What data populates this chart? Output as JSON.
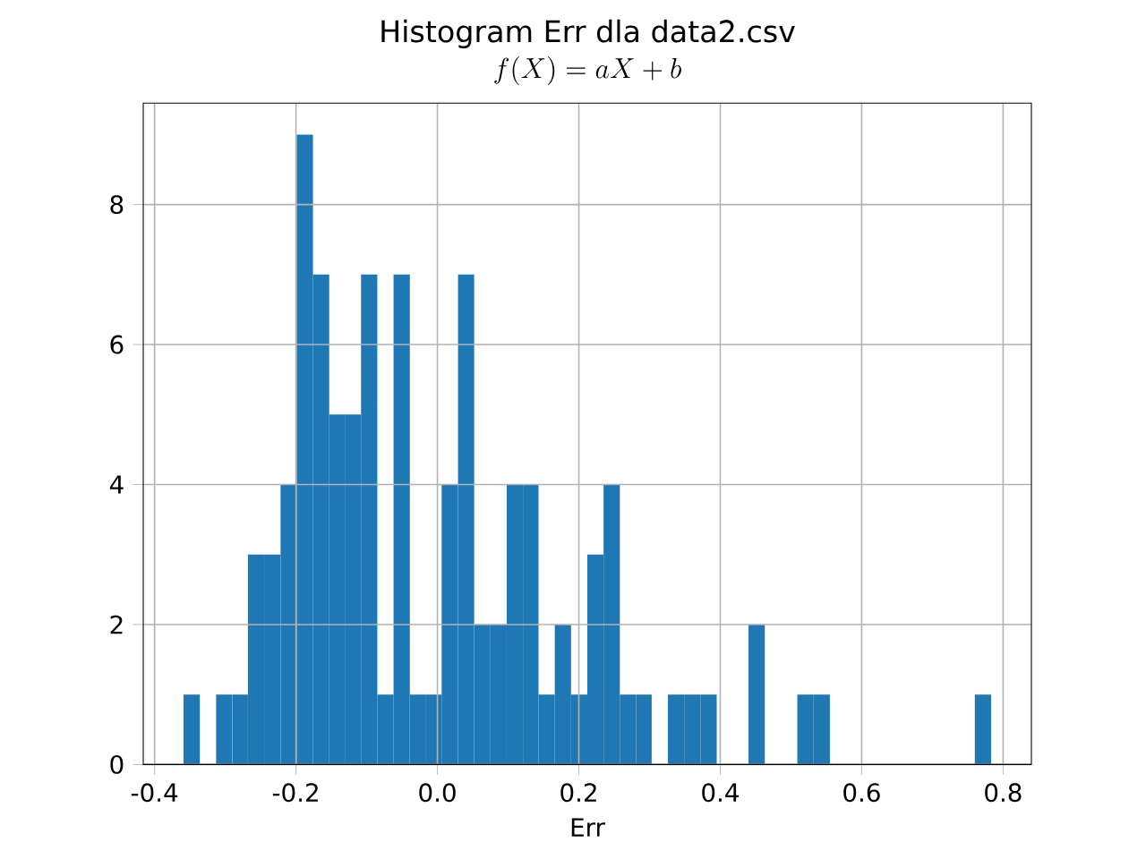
{
  "chart_data": {
    "type": "histogram",
    "title": "Histogram Err dla data2.csv",
    "subtitle": "f(X) = aX + b",
    "xlabel": "Err",
    "bins": [
      -0.359,
      -0.336,
      -0.313,
      -0.29,
      -0.268,
      -0.245,
      -0.222,
      -0.199,
      -0.176,
      -0.153,
      -0.131,
      -0.108,
      -0.085,
      -0.062,
      -0.039,
      -0.016,
      0.006,
      0.029,
      0.052,
      0.075,
      0.098,
      0.121,
      0.143,
      0.166,
      0.189,
      0.212,
      0.235,
      0.258,
      0.281,
      0.303,
      0.326,
      0.349,
      0.372,
      0.395,
      0.44,
      0.463,
      0.509,
      0.532,
      0.555,
      0.76,
      0.783
    ],
    "values": [
      1,
      0,
      1,
      1,
      3,
      3,
      4,
      9,
      7,
      5,
      5,
      7,
      1,
      7,
      1,
      1,
      4,
      7,
      2,
      2,
      4,
      4,
      1,
      2,
      1,
      3,
      4,
      1,
      1,
      0,
      1,
      1,
      1,
      0,
      2,
      0,
      1,
      1,
      0,
      1
    ],
    "color": "#1f77b4",
    "xlim": [
      -0.416,
      0.84
    ],
    "ylim": [
      0,
      9.45
    ],
    "xticks": [
      -0.4,
      -0.2,
      {
        "value": 0,
        "label": "0.0"
      },
      0.2,
      0.4,
      0.6,
      0.8
    ],
    "yticks": [
      0,
      2,
      4,
      6,
      8
    ],
    "grid": true
  }
}
